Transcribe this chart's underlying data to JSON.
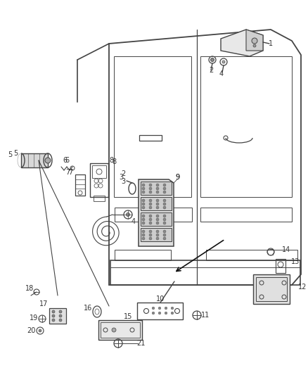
{
  "background_color": "#ffffff",
  "line_color": "#444444",
  "text_color": "#333333",
  "fig_width": 4.38,
  "fig_height": 5.33,
  "dpi": 100
}
